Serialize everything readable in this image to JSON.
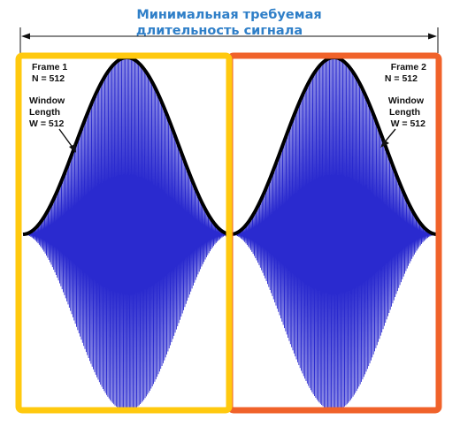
{
  "title": {
    "line1": "Минимальная требуемая",
    "line2": "длительность сигнала"
  },
  "frames": [
    {
      "frame_label": "Frame  1",
      "n_label": "N = 512",
      "window_label": "Window",
      "length_label": "Length",
      "w_label": "W = 512",
      "border_color": "#ffc90e"
    },
    {
      "frame_label": "Frame  2",
      "n_label": "N = 512",
      "window_label": "Window",
      "length_label": "Length",
      "w_label": "W = 512",
      "border_color": "#f0622a"
    }
  ],
  "colors": {
    "signal": "#2a2acf",
    "window_envelope": "#000000",
    "title": "#2f7fc8",
    "dimension_line": "#111111"
  }
}
